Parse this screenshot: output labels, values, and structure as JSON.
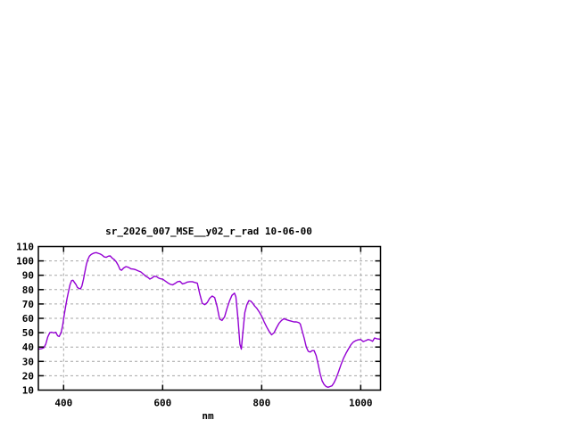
{
  "window": {
    "background_color": "#ffffff"
  },
  "chart_data": {
    "type": "line",
    "title": "sr_2026_007_MSE__y02_r_rad 10-06-00",
    "xlabel": "nm",
    "ylabel": "",
    "xlim": [
      349,
      1040
    ],
    "ylim": [
      10,
      110
    ],
    "x_ticks": [
      400,
      600,
      800,
      1000
    ],
    "y_ticks": [
      10,
      20,
      30,
      40,
      50,
      60,
      70,
      80,
      90,
      100,
      110
    ],
    "grid": true,
    "legend": "none",
    "line_color": "#9400d3",
    "grid_color": "#a6a6a6",
    "axis_color": "#000000",
    "series": [
      {
        "name": "sr_2026_007_MSE__y02_r_rad",
        "points": [
          [
            349,
            38.5
          ],
          [
            355,
            38.8
          ],
          [
            360,
            39.5
          ],
          [
            364,
            42
          ],
          [
            368,
            47
          ],
          [
            372,
            50
          ],
          [
            376,
            50.3
          ],
          [
            380,
            49.8
          ],
          [
            384,
            50.3
          ],
          [
            388,
            47.8
          ],
          [
            391,
            47.3
          ],
          [
            395,
            50
          ],
          [
            398,
            55
          ],
          [
            401,
            62
          ],
          [
            404,
            68
          ],
          [
            407,
            74
          ],
          [
            410,
            79
          ],
          [
            413,
            83.5
          ],
          [
            416,
            86.3
          ],
          [
            419,
            86.5
          ],
          [
            422,
            85
          ],
          [
            425,
            83.5
          ],
          [
            428,
            81.5
          ],
          [
            431,
            80.8
          ],
          [
            434,
            80.5
          ],
          [
            437,
            82.5
          ],
          [
            440,
            87
          ],
          [
            443,
            92.5
          ],
          [
            446,
            97.5
          ],
          [
            449,
            101
          ],
          [
            452,
            103.3
          ],
          [
            455,
            104.3
          ],
          [
            458,
            105
          ],
          [
            462,
            105.5
          ],
          [
            466,
            105.8
          ],
          [
            470,
            105.3
          ],
          [
            474,
            104.8
          ],
          [
            478,
            104
          ],
          [
            482,
            102.8
          ],
          [
            486,
            102.5
          ],
          [
            490,
            103.3
          ],
          [
            494,
            103.5
          ],
          [
            498,
            102
          ],
          [
            502,
            101
          ],
          [
            506,
            99.5
          ],
          [
            510,
            97
          ],
          [
            514,
            94
          ],
          [
            517,
            93.5
          ],
          [
            521,
            95
          ],
          [
            526,
            96
          ],
          [
            531,
            95.5
          ],
          [
            536,
            94.5
          ],
          [
            541,
            94.3
          ],
          [
            546,
            93.8
          ],
          [
            551,
            93
          ],
          [
            556,
            92.3
          ],
          [
            561,
            90.8
          ],
          [
            566,
            89.3
          ],
          [
            571,
            88.3
          ],
          [
            574,
            87.3
          ],
          [
            578,
            88
          ],
          [
            583,
            89.3
          ],
          [
            588,
            89
          ],
          [
            592,
            88
          ],
          [
            596,
            87.5
          ],
          [
            600,
            87.3
          ],
          [
            605,
            86
          ],
          [
            610,
            84.8
          ],
          [
            615,
            83.8
          ],
          [
            620,
            83.3
          ],
          [
            625,
            84.3
          ],
          [
            630,
            85.5
          ],
          [
            635,
            85.8
          ],
          [
            640,
            84
          ],
          [
            645,
            84.5
          ],
          [
            650,
            85.3
          ],
          [
            655,
            85.5
          ],
          [
            660,
            85.5
          ],
          [
            665,
            85
          ],
          [
            670,
            84.5
          ],
          [
            675,
            77
          ],
          [
            680,
            70.5
          ],
          [
            685,
            69.5
          ],
          [
            690,
            71
          ],
          [
            695,
            74
          ],
          [
            700,
            75.5
          ],
          [
            705,
            74.5
          ],
          [
            710,
            68
          ],
          [
            715,
            59.5
          ],
          [
            720,
            58.5
          ],
          [
            725,
            61
          ],
          [
            730,
            67
          ],
          [
            735,
            72
          ],
          [
            740,
            76
          ],
          [
            745,
            77.5
          ],
          [
            748,
            75
          ],
          [
            752,
            60
          ],
          [
            756,
            42
          ],
          [
            759,
            38.5
          ],
          [
            762,
            50
          ],
          [
            766,
            64
          ],
          [
            770,
            69.5
          ],
          [
            774,
            72.3
          ],
          [
            778,
            72
          ],
          [
            782,
            70.5
          ],
          [
            786,
            68.5
          ],
          [
            790,
            67
          ],
          [
            795,
            64.5
          ],
          [
            800,
            61.5
          ],
          [
            805,
            57.5
          ],
          [
            810,
            54
          ],
          [
            815,
            51
          ],
          [
            820,
            48.5
          ],
          [
            825,
            50
          ],
          [
            830,
            53.5
          ],
          [
            835,
            56.5
          ],
          [
            840,
            58.5
          ],
          [
            845,
            59.8
          ],
          [
            850,
            59
          ],
          [
            855,
            58.5
          ],
          [
            860,
            58
          ],
          [
            865,
            57.5
          ],
          [
            870,
            57.5
          ],
          [
            875,
            57
          ],
          [
            878,
            56
          ],
          [
            882,
            51
          ],
          [
            886,
            46
          ],
          [
            890,
            40
          ],
          [
            894,
            37
          ],
          [
            898,
            36.5
          ],
          [
            902,
            37.5
          ],
          [
            906,
            37.5
          ],
          [
            910,
            34
          ],
          [
            914,
            28
          ],
          [
            918,
            21.5
          ],
          [
            922,
            16.5
          ],
          [
            926,
            14
          ],
          [
            930,
            12.5
          ],
          [
            934,
            12
          ],
          [
            938,
            12.5
          ],
          [
            942,
            13
          ],
          [
            946,
            15
          ],
          [
            950,
            18
          ],
          [
            955,
            22.5
          ],
          [
            960,
            27.5
          ],
          [
            965,
            32
          ],
          [
            970,
            35.5
          ],
          [
            975,
            38.5
          ],
          [
            980,
            41.5
          ],
          [
            985,
            43.5
          ],
          [
            990,
            44.5
          ],
          [
            995,
            45
          ],
          [
            1000,
            45.2
          ],
          [
            1005,
            43.8
          ],
          [
            1010,
            44.5
          ],
          [
            1015,
            45.3
          ],
          [
            1020,
            44.8
          ],
          [
            1024,
            44
          ],
          [
            1028,
            46.3
          ],
          [
            1033,
            45.8
          ],
          [
            1040,
            45.4
          ]
        ]
      }
    ]
  }
}
